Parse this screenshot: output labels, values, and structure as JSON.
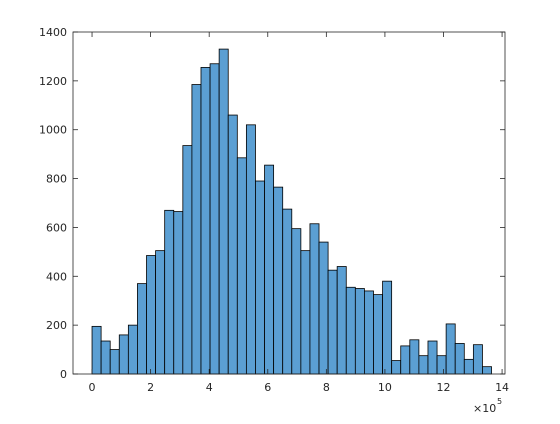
{
  "chart_data": {
    "type": "histogram",
    "bins": [
      0,
      0.31,
      0.62,
      0.93,
      1.24,
      1.55,
      1.86,
      2.17,
      2.48,
      2.79,
      3.1,
      3.41,
      3.72,
      4.03,
      4.34,
      4.65,
      4.96,
      5.27,
      5.58,
      5.89,
      6.2,
      6.51,
      6.82,
      7.13,
      7.44,
      7.75,
      8.06,
      8.37,
      8.68,
      8.99,
      9.3,
      9.61,
      9.92,
      10.23,
      10.54,
      10.85,
      11.16,
      11.47,
      11.78,
      12.09,
      12.4,
      12.71,
      13.02,
      13.33,
      13.64
    ],
    "values": [
      195,
      135,
      100,
      160,
      200,
      370,
      485,
      505,
      670,
      665,
      935,
      1185,
      1255,
      1270,
      1330,
      1060,
      885,
      1020,
      790,
      855,
      765,
      675,
      595,
      505,
      615,
      540,
      425,
      440,
      355,
      350,
      340,
      325,
      380,
      55,
      115,
      140,
      75,
      135,
      75,
      205,
      125,
      60,
      120,
      30
    ],
    "color": "#5b9fd3",
    "xlim": [
      -0.65,
      14.1
    ],
    "ylim": [
      0,
      1400
    ],
    "xticks": [
      0,
      2,
      4,
      6,
      8,
      10,
      12,
      14
    ],
    "yticks": [
      0,
      200,
      400,
      600,
      800,
      1000,
      1200,
      1400
    ],
    "x_multiplier": {
      "base": "×10",
      "exponent": "5"
    }
  }
}
